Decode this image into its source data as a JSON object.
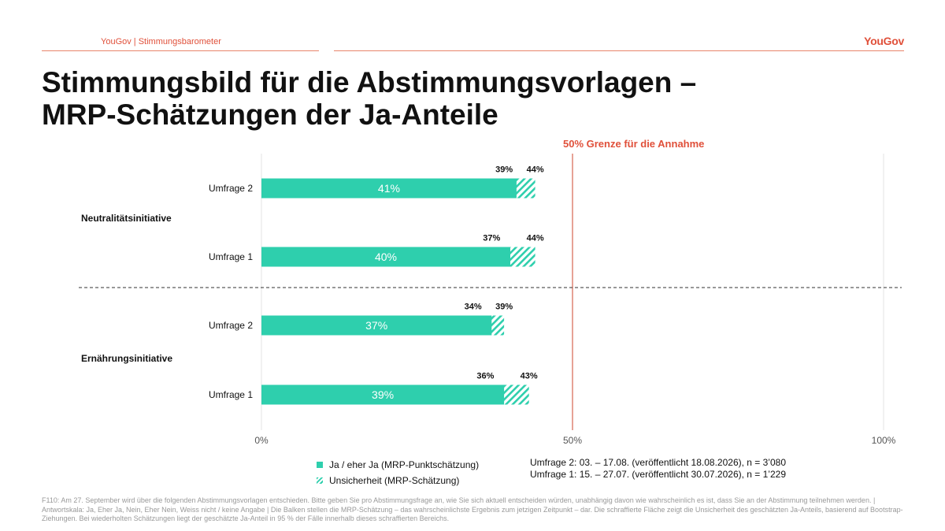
{
  "header": {
    "brand_text": "YouGov | Stimmungsbarometer",
    "logo_text": "YouGov",
    "title_line1": "Stimmungsbild für die Abstimmungsvorlagen –",
    "title_line2": "MRP-Schätzungen der Ja-Anteile"
  },
  "colors": {
    "accent": "#e0503a",
    "bar": "#2ecfad",
    "threshold": "#d9705d"
  },
  "chart_data": {
    "type": "bar",
    "orientation": "horizontal",
    "xlim": [
      0,
      100
    ],
    "x_ticks": [
      "0%",
      "50%",
      "100%"
    ],
    "threshold_value": 50,
    "threshold_label": "50% Grenze für die Annahme",
    "groups": [
      {
        "name": "Neutralitätsinitiative",
        "bars": [
          {
            "label": "Umfrage 2",
            "value": 41,
            "value_label": "41%",
            "low": 39,
            "high": 44,
            "low_label": "39%",
            "high_label": "44%"
          },
          {
            "label": "Umfrage 1",
            "value": 40,
            "value_label": "40%",
            "low": 37,
            "high": 44,
            "low_label": "37%",
            "high_label": "44%"
          }
        ]
      },
      {
        "name": "Ernährungsinitiative",
        "bars": [
          {
            "label": "Umfrage 2",
            "value": 37,
            "value_label": "37%",
            "low": 34,
            "high": 39,
            "low_label": "34%",
            "high_label": "39%"
          },
          {
            "label": "Umfrage 1",
            "value": 39,
            "value_label": "39%",
            "low": 36,
            "high": 43,
            "low_label": "36%",
            "high_label": "43%"
          }
        ]
      }
    ],
    "legend": [
      {
        "label": "Ja / eher Ja (MRP-Punktschätzung)",
        "style": "solid"
      },
      {
        "label": "Unsicherheit (MRP-Schätzung)",
        "style": "hatched"
      }
    ]
  },
  "surveys": {
    "line2": "Umfrage 2: 03. – 17.08. (veröffentlicht 18.08.2026), n = 3’080",
    "line1": "Umfrage 1: 15. – 27.07. (veröffentlicht 30.07.2026), n = 1’229"
  },
  "footnote": "F110: Am 27. September wird über die folgenden Abstimmungsvorlagen entschieden. Bitte geben Sie pro Abstimmungsfrage an, wie Sie sich aktuell entscheiden würden, unabhängig davon wie wahrscheinlich es ist, dass Sie an der Abstimmung teilnehmen werden. | Antwortskala: Ja, Eher Ja, Nein, Eher Nein, Weiss nicht / keine Angabe | Die Balken stellen die MRP-Schätzung – das wahrscheinlichste Ergebnis zum jetzigen Zeitpunkt – dar. Die schraffierte Fläche zeigt die Unsicherheit des geschätzten Ja-Anteils, basierend auf Bootstrap-Ziehungen. Bei wiederholten Schätzungen liegt der geschätzte Ja-Anteil in 95 % der Fälle innerhalb dieses schraffierten Bereichs."
}
